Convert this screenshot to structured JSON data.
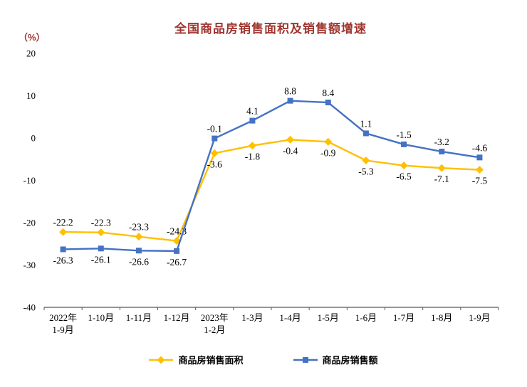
{
  "chart_data": {
    "type": "line",
    "title": "全国商品房销售面积及销售额增速",
    "ylabel": "（%）",
    "xlabel": "",
    "ylim": [
      -40,
      20
    ],
    "yticks": [
      20,
      10,
      0,
      -10,
      -20,
      -30,
      -40
    ],
    "grid": false,
    "legend_position": "bottom",
    "categories": [
      "2022年\n1-9月",
      "1-10月",
      "1-11月",
      "1-12月",
      "2023年\n1-2月",
      "1-3月",
      "1-4月",
      "1-5月",
      "1-6月",
      "1-7月",
      "1-8月",
      "1-9月"
    ],
    "series": [
      {
        "name": "商品房销售面积",
        "color": "#FFC000",
        "marker": "diamond",
        "values": [
          -22.2,
          -22.3,
          -23.3,
          -24.3,
          -3.6,
          -1.8,
          -0.4,
          -0.9,
          -5.3,
          -6.5,
          -7.1,
          -7.5
        ],
        "label_positions": [
          "above",
          "above",
          "above",
          "above",
          "below",
          "below",
          "below",
          "below",
          "below",
          "below",
          "below",
          "below"
        ]
      },
      {
        "name": "商品房销售额",
        "color": "#4472C4",
        "marker": "square",
        "values": [
          -26.3,
          -26.1,
          -26.6,
          -26.7,
          -0.1,
          4.1,
          8.8,
          8.4,
          1.1,
          -1.5,
          -3.2,
          -4.6
        ],
        "label_positions": [
          "below",
          "below",
          "below",
          "below",
          "above",
          "above",
          "above",
          "above",
          "above",
          "above",
          "above",
          "above"
        ]
      }
    ]
  },
  "colors": {
    "title_color": "#A0352F",
    "axis": "#595959",
    "text": "#000000"
  }
}
